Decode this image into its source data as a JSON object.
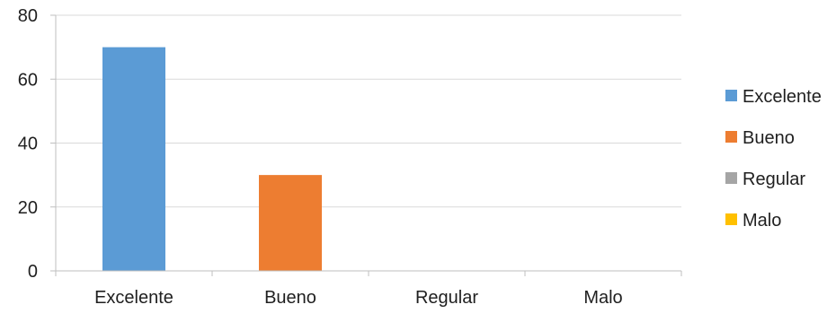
{
  "chart_data": {
    "type": "bar",
    "title": "",
    "xlabel": "",
    "ylabel": "",
    "categories": [
      "Excelente",
      "Bueno",
      "Regular",
      "Malo"
    ],
    "values": [
      70,
      30,
      0,
      0
    ],
    "colors": [
      "#5B9BD5",
      "#ED7D31",
      "#A5A5A5",
      "#FFC000"
    ],
    "ylim": [
      0,
      80
    ],
    "yticks": [
      0,
      20,
      40,
      60,
      80
    ],
    "grid": true,
    "legend": {
      "position": "right",
      "entries": [
        "Excelente",
        "Bueno",
        "Regular",
        "Malo"
      ]
    }
  }
}
